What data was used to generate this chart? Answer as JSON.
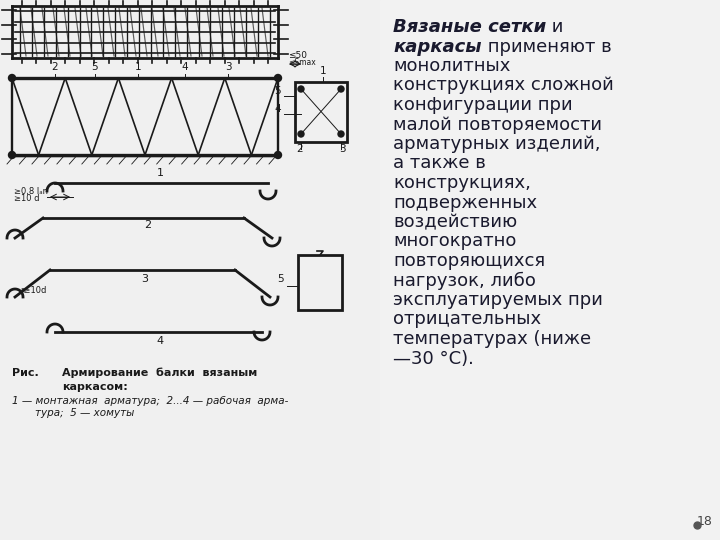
{
  "bg_color": "#f0f0f0",
  "left_bg": "#e8e8e8",
  "right_bg": "#f5f5f5",
  "dc": "#1a1a1a",
  "lw": 1.2,
  "caption_line1": "Рис.        Армирование  балки  вязаным",
  "caption_line2": "каркасом:",
  "caption_line3": "1 — монтажная  арматура;  2...4 — рабочая  арма-",
  "caption_line4": "тура;  5 — хомуты",
  "page_number": "18",
  "right_text_lines": [
    {
      "bold": "Вязаные сетки",
      "normal": " и"
    },
    {
      "bold": "каркасы",
      "normal": " применяют в"
    },
    {
      "bold": "",
      "normal": "монолитных"
    },
    {
      "bold": "",
      "normal": "конструкциях сложной"
    },
    {
      "bold": "",
      "normal": "конфигурации при"
    },
    {
      "bold": "",
      "normal": "малой повторяемости"
    },
    {
      "bold": "",
      "normal": "арматурных изделий,"
    },
    {
      "bold": "",
      "normal": "а также в"
    },
    {
      "bold": "",
      "normal": "конструкциях,"
    },
    {
      "bold": "",
      "normal": "подверженных"
    },
    {
      "bold": "",
      "normal": "воздействию"
    },
    {
      "bold": "",
      "normal": "многократно"
    },
    {
      "bold": "",
      "normal": "повторяющихся"
    },
    {
      "bold": "",
      "normal": "нагрузок, либо"
    },
    {
      "bold": "",
      "normal": "эксплуатируемых при"
    },
    {
      "bold": "",
      "normal": "отрицательных"
    },
    {
      "bold": "",
      "normal": "температурах (ниже"
    },
    {
      "bold": "",
      "normal": "—30 °C)."
    }
  ]
}
